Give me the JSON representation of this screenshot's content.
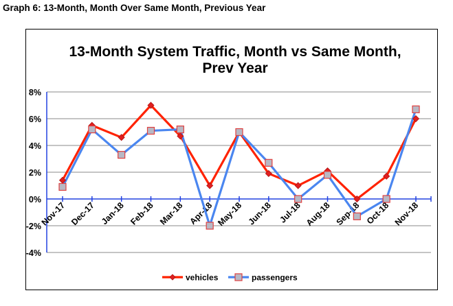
{
  "page": {
    "caption": "Graph 6: 13-Month, Month Over Same Month, Previous Year"
  },
  "chart_data": {
    "type": "line",
    "title_lines": [
      "13-Month System Traffic, Month vs Same Month,",
      "Prev Year"
    ],
    "categories": [
      "Nov-17",
      "Dec-17",
      "Jan-18",
      "Feb-18",
      "Mar-18",
      "Apr-18",
      "May-18",
      "Jun-18",
      "Jul-18",
      "Aug-18",
      "Sep-18",
      "Oct-18",
      "Nov-18"
    ],
    "y_ticks": [
      "8%",
      "6%",
      "4%",
      "2%",
      "0%",
      "-2%",
      "-4%"
    ],
    "ylim": [
      -4,
      8
    ],
    "y_unit": "%",
    "grid": true,
    "legend_position": "bottom-center",
    "series": [
      {
        "name": "vehicles",
        "color": "#ff2200",
        "marker": "diamond",
        "marker_color": "#e02020",
        "values": [
          1.4,
          5.5,
          4.6,
          7.0,
          4.7,
          1.0,
          5.0,
          1.9,
          1.0,
          2.1,
          0.0,
          1.7,
          6.0
        ]
      },
      {
        "name": "passengers",
        "color": "#4a86f0",
        "marker": "square",
        "marker_color": "#b8b8c4",
        "values": [
          0.9,
          5.2,
          3.3,
          5.1,
          5.2,
          -2.0,
          5.0,
          2.7,
          0.0,
          1.8,
          -1.3,
          0.0,
          6.7
        ]
      }
    ]
  }
}
